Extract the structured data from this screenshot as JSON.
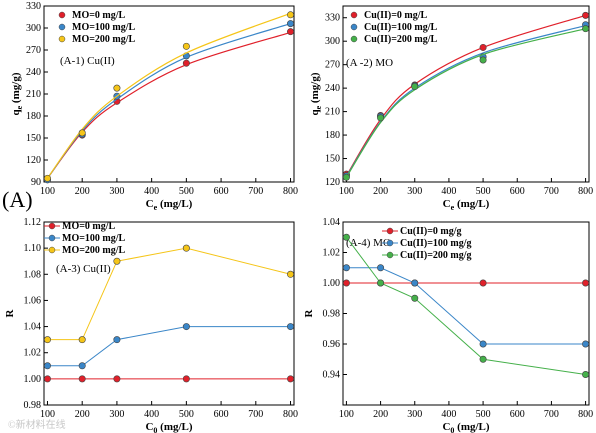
{
  "figure_label": "(A)",
  "watermark": "©新材料在线",
  "colors": {
    "red": "#e0202a",
    "blue": "#3a86c8",
    "yellow": "#f5c518",
    "green": "#45b04a"
  },
  "chart_data": [
    {
      "id": "a1",
      "type": "scatter",
      "panel_title": "(A-1) Cu(II)",
      "xlabel": "C_e (mg/L)",
      "ylabel": "q_e (mg/g)",
      "xlim": [
        90,
        810
      ],
      "ylim": [
        90,
        330
      ],
      "xticks": [
        100,
        200,
        300,
        400,
        500,
        600,
        700,
        800
      ],
      "yticks": [
        90,
        120,
        150,
        180,
        210,
        240,
        270,
        300,
        330
      ],
      "legend_position": "top-left",
      "series": [
        {
          "name": "MO=0 mg/L",
          "color": "#e0202a",
          "x": [
            100,
            200,
            300,
            500,
            800
          ],
          "y": [
            93,
            154,
            200,
            252,
            295
          ],
          "fit": [
            95,
            158,
            198,
            250,
            294
          ]
        },
        {
          "name": "MO=100 mg/L",
          "color": "#3a86c8",
          "x": [
            100,
            200,
            300,
            500,
            800
          ],
          "y": [
            93,
            155,
            207,
            262,
            306
          ],
          "fit": [
            95,
            160,
            203,
            260,
            306
          ]
        },
        {
          "name": "MO=200 mg/L",
          "color": "#f5c518",
          "x": [
            100,
            200,
            300,
            500,
            800
          ],
          "y": [
            95,
            157,
            218,
            275,
            318
          ],
          "fit": [
            95,
            162,
            207,
            266,
            320
          ]
        }
      ]
    },
    {
      "id": "a2",
      "type": "scatter",
      "panel_title": "(A -2) MO",
      "xlabel": "C_e (mg/L)",
      "ylabel": "q_e (mg/g)",
      "xlim": [
        90,
        810
      ],
      "ylim": [
        120,
        345
      ],
      "xticks": [
        100,
        200,
        300,
        400,
        500,
        600,
        700,
        800
      ],
      "yticks": [
        120,
        150,
        180,
        210,
        240,
        270,
        300,
        330
      ],
      "legend_position": "top-left",
      "series": [
        {
          "name": "Cu(II)=0 mg/L",
          "color": "#e0202a",
          "x": [
            100,
            200,
            300,
            500,
            800
          ],
          "y": [
            130,
            205,
            244,
            292,
            333
          ],
          "fit": [
            128,
            200,
            245,
            292,
            333
          ]
        },
        {
          "name": "Cu(II)=100 mg/L",
          "color": "#3a86c8",
          "x": [
            100,
            200,
            300,
            500,
            800
          ],
          "y": [
            128,
            204,
            243,
            280,
            321
          ],
          "fit": [
            127,
            197,
            240,
            285,
            320
          ]
        },
        {
          "name": "Cu(II)=200 mg/L",
          "color": "#45b04a",
          "x": [
            100,
            200,
            300,
            500,
            800
          ],
          "y": [
            126,
            202,
            242,
            276,
            316
          ],
          "fit": [
            126,
            196,
            238,
            283,
            316
          ]
        }
      ]
    },
    {
      "id": "a3",
      "type": "line",
      "panel_title": "(A-3) Cu(II)",
      "xlabel": "C_0 (mg/L)",
      "ylabel": "R",
      "xlim": [
        90,
        810
      ],
      "ylim": [
        0.98,
        1.12
      ],
      "xticks": [
        100,
        200,
        300,
        400,
        500,
        600,
        700,
        800
      ],
      "yticks": [
        0.98,
        1.0,
        1.02,
        1.04,
        1.06,
        1.08,
        1.1,
        1.12
      ],
      "legend_position": "top-left",
      "series": [
        {
          "name": "MO=0 mg/L",
          "color": "#e0202a",
          "x": [
            100,
            200,
            300,
            500,
            800
          ],
          "y": [
            1.0,
            1.0,
            1.0,
            1.0,
            1.0
          ]
        },
        {
          "name": "MO=100 mg/L",
          "color": "#3a86c8",
          "x": [
            100,
            200,
            300,
            500,
            800
          ],
          "y": [
            1.01,
            1.01,
            1.03,
            1.04,
            1.04
          ]
        },
        {
          "name": "MO=200 mg/L",
          "color": "#f5c518",
          "x": [
            100,
            200,
            300,
            500,
            800
          ],
          "y": [
            1.03,
            1.03,
            1.09,
            1.1,
            1.08
          ]
        }
      ]
    },
    {
      "id": "a4",
      "type": "line",
      "panel_title": "(A-4) MO",
      "xlabel": "C_0 (mg/L)",
      "ylabel": "R",
      "xlim": [
        90,
        810
      ],
      "ylim": [
        0.92,
        1.04
      ],
      "xticks": [
        100,
        200,
        300,
        400,
        500,
        600,
        700,
        800
      ],
      "yticks": [
        0.94,
        0.96,
        0.98,
        1.0,
        1.02,
        1.04
      ],
      "legend_position": "top-right",
      "series": [
        {
          "name": "Cu(II)=0 mg/g",
          "color": "#e0202a",
          "x": [
            100,
            200,
            300,
            500,
            800
          ],
          "y": [
            1.0,
            1.0,
            1.0,
            1.0,
            1.0
          ]
        },
        {
          "name": "Cu(II)=100 mg/g",
          "color": "#3a86c8",
          "x": [
            100,
            200,
            300,
            500,
            800
          ],
          "y": [
            1.01,
            1.01,
            1.0,
            0.96,
            0.96
          ]
        },
        {
          "name": "Cu(II)=200 mg/g",
          "color": "#45b04a",
          "x": [
            100,
            200,
            300,
            500,
            800
          ],
          "y": [
            1.03,
            1.0,
            0.99,
            0.95,
            0.94
          ]
        }
      ]
    }
  ]
}
